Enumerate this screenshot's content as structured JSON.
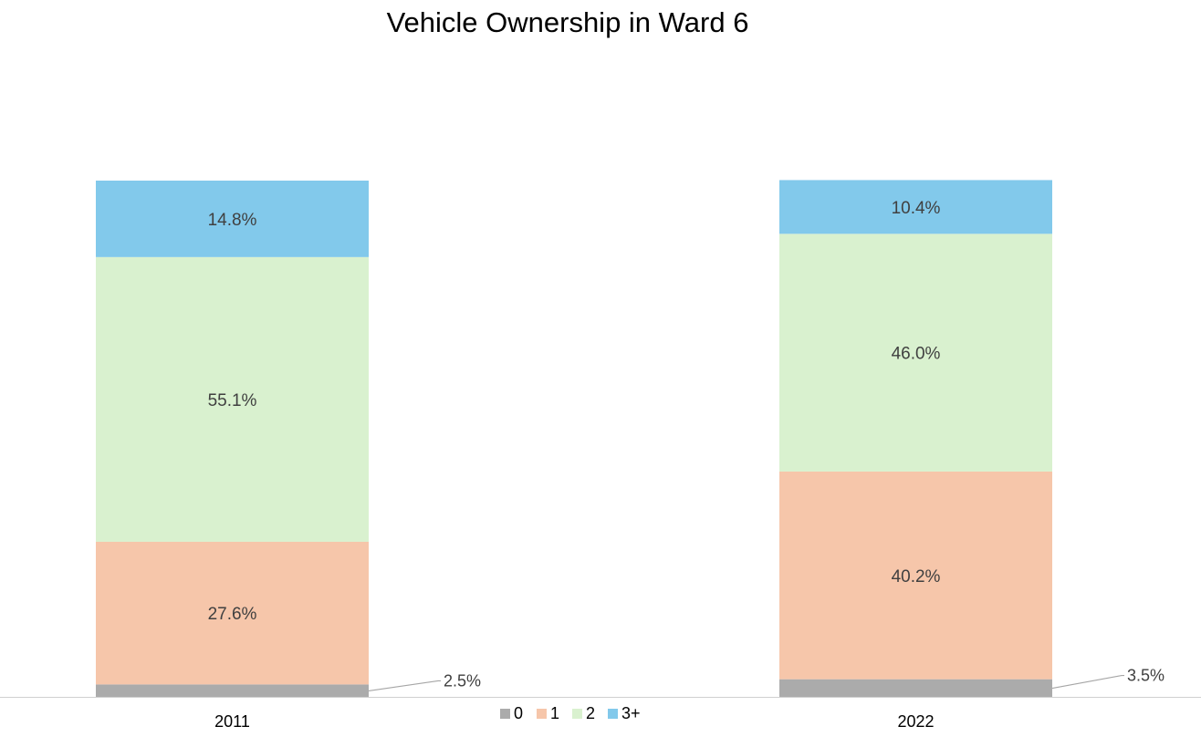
{
  "chart_data": {
    "type": "bar",
    "stacked": true,
    "title": "Vehicle Ownership in Ward 6",
    "xlabel": "",
    "ylabel": "",
    "categories": [
      "2011",
      "2022"
    ],
    "series": [
      {
        "name": "0",
        "values": [
          2.5,
          3.5
        ],
        "labels": [
          "2.5%",
          "3.5%"
        ],
        "color": "#ababab"
      },
      {
        "name": "1",
        "values": [
          27.6,
          40.2
        ],
        "labels": [
          "27.6%",
          "40.2%"
        ],
        "color": "#f6c6aa"
      },
      {
        "name": "2",
        "values": [
          55.1,
          46.0
        ],
        "labels": [
          "55.1%",
          "46.0%"
        ],
        "color": "#d9f1cf"
      },
      {
        "name": "3+",
        "values": [
          14.8,
          10.4
        ],
        "labels": [
          "14.8%",
          "10.4%"
        ],
        "color": "#82c9eb"
      }
    ],
    "ylim": [
      0,
      100
    ],
    "grid": false,
    "legend": "bottom",
    "axis_line_color": "#d0d0d0",
    "callout_color": "#a6a6a6"
  }
}
